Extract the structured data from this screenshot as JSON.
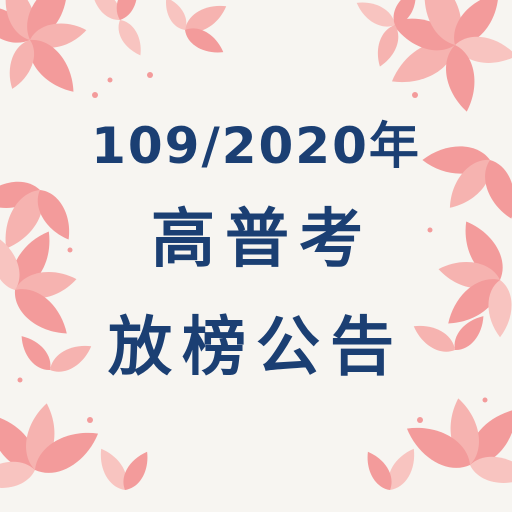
{
  "poster": {
    "year_line": "109/2020年",
    "exam_line": "高普考",
    "notice_line": "放榜公告"
  },
  "colors": {
    "background": "#f7f5f1",
    "text": "#1b3f73",
    "leaf_primary": "#f39b9b",
    "leaf_light": "#f8c4c0"
  },
  "decoration": {
    "icon": "pink-floral-leaf-border"
  }
}
